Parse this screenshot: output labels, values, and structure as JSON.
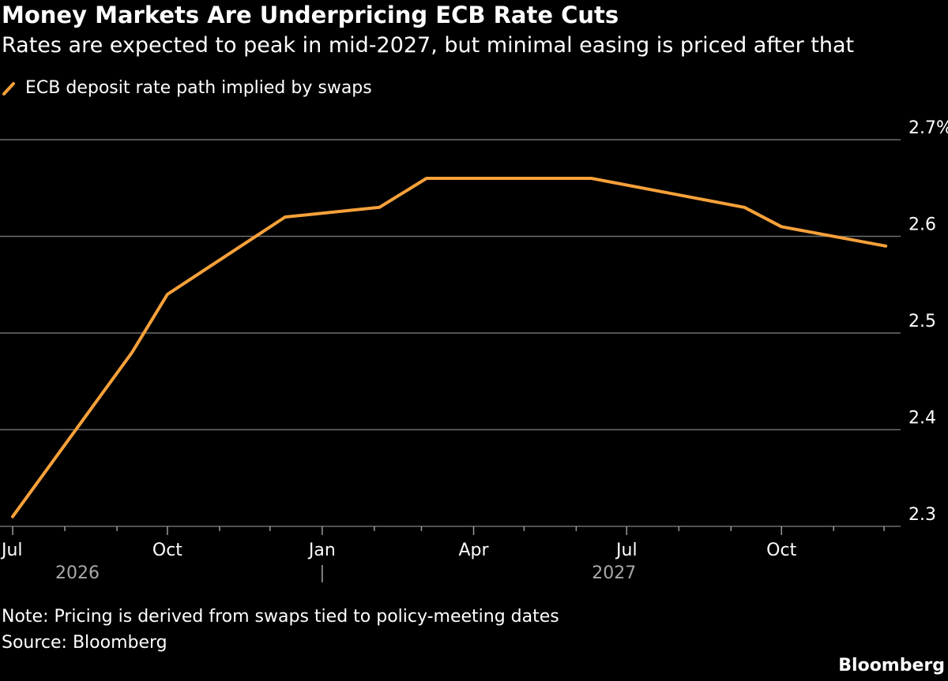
{
  "header": {
    "title": "Money Markets Are Underpricing ECB Rate Cuts",
    "subtitle": "Rates are expected to peak in mid-2027, but minimal easing is priced after that"
  },
  "legend": {
    "label": "ECB deposit rate path implied by swaps",
    "color": "#F7A13A"
  },
  "footer": {
    "note": "Note: Pricing is derived from swaps tied to policy-meeting dates",
    "source": "Source: Bloomberg",
    "brand": "Bloomberg"
  },
  "chart_data": {
    "type": "line",
    "title": "Money Markets Are Underpricing ECB Rate Cuts",
    "subtitle": "Rates are expected to peak in mid-2027, but minimal easing is priced after that",
    "xlabel": "",
    "ylabel": "",
    "ylim": [
      2.3,
      2.7
    ],
    "yticks": [
      "2.3",
      "2.4",
      "2.5",
      "2.6",
      "2.7%"
    ],
    "yticks_values": [
      2.3,
      2.4,
      2.5,
      2.6,
      2.7
    ],
    "xticks": [
      {
        "label": "Jul",
        "date": "2026-07-01"
      },
      {
        "label": "Oct",
        "date": "2026-10-01"
      },
      {
        "label": "Jan",
        "date": "2027-01-01"
      },
      {
        "label": "Apr",
        "date": "2027-04-01"
      },
      {
        "label": "Jul",
        "date": "2027-07-01"
      },
      {
        "label": "Oct",
        "date": "2027-10-01"
      }
    ],
    "years": [
      {
        "label": "2026",
        "date": "2026-08-16"
      },
      {
        "label": "2027",
        "date": "2027-07-01"
      }
    ],
    "grid": true,
    "legend_position": "top-left",
    "series": [
      {
        "name": "ECB deposit rate path implied by swaps",
        "color": "#F7A13A",
        "points": [
          {
            "x": "2026-07-01",
            "y": 2.31
          },
          {
            "x": "2026-09-10",
            "y": 2.48
          },
          {
            "x": "2026-10-01",
            "y": 2.54
          },
          {
            "x": "2026-12-10",
            "y": 2.62
          },
          {
            "x": "2027-02-04",
            "y": 2.63
          },
          {
            "x": "2027-03-04",
            "y": 2.66
          },
          {
            "x": "2027-06-10",
            "y": 2.66
          },
          {
            "x": "2027-09-09",
            "y": 2.63
          },
          {
            "x": "2027-10-01",
            "y": 2.61
          },
          {
            "x": "2027-12-02",
            "y": 2.59
          }
        ]
      }
    ]
  }
}
